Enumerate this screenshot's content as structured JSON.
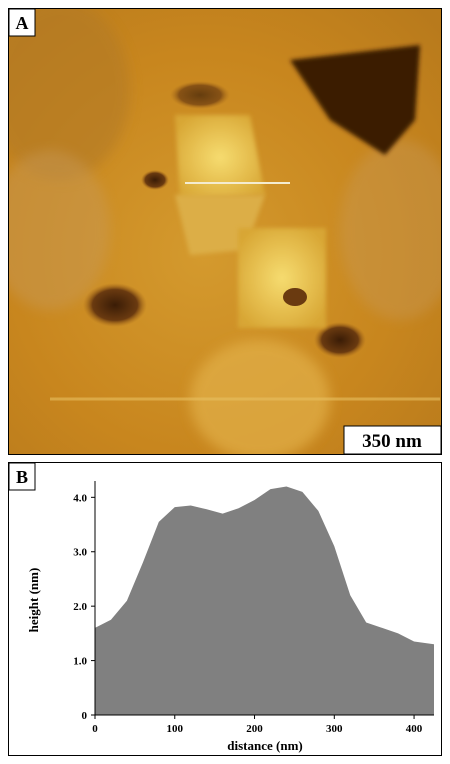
{
  "image_panel": {
    "label": "A",
    "scale_bar": "350 nm"
  },
  "chart_data": {
    "type": "area",
    "panel_label": "B",
    "x_label": "distance (nm)",
    "y_label": "height (nm)",
    "x": [
      0,
      20,
      40,
      60,
      80,
      100,
      120,
      140,
      160,
      180,
      200,
      220,
      240,
      260,
      280,
      300,
      320,
      340,
      360,
      380,
      400,
      425
    ],
    "values": [
      1.6,
      1.75,
      2.1,
      2.8,
      3.55,
      3.82,
      3.85,
      3.78,
      3.7,
      3.8,
      3.95,
      4.15,
      4.2,
      4.1,
      3.75,
      3.1,
      2.2,
      1.7,
      1.6,
      1.5,
      1.35,
      1.3
    ],
    "color": "#808080",
    "xlim": [
      0,
      425
    ],
    "ylim": [
      0,
      4.3
    ],
    "xticks": [
      0,
      100,
      200,
      300,
      400
    ],
    "yticks": [
      0,
      {
        "value": 1,
        "label": "1.0"
      },
      {
        "value": 2,
        "label": "2.0"
      },
      {
        "value": 3,
        "label": "3.0"
      },
      {
        "value": 4,
        "label": "4.0"
      }
    ]
  }
}
